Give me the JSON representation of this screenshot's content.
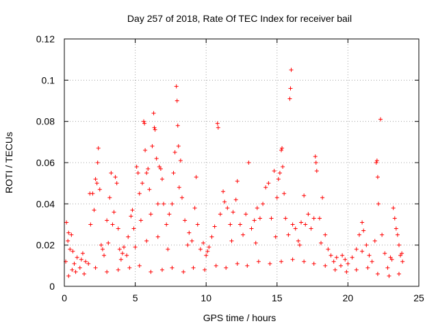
{
  "chart_data": {
    "type": "scatter",
    "title": "Day 257 of 2018, Rate Of TEC Index for receiver bail",
    "xlabel": "GPS time / hours",
    "ylabel": "ROTI / TECUs",
    "xlim": [
      0,
      25
    ],
    "ylim": [
      0,
      0.12
    ],
    "xticks": [
      0,
      5,
      10,
      15,
      20,
      25
    ],
    "yticks": [
      0,
      0.02,
      0.04,
      0.06,
      0.08,
      0.1,
      0.12
    ],
    "xtick_labels": [
      "0",
      "5",
      "10",
      "15",
      "20",
      "25"
    ],
    "ytick_labels": [
      "0",
      "0.02",
      "0.04",
      "0.06",
      "0.08",
      "0.1",
      "0.12"
    ],
    "grid": true,
    "marker": "+",
    "color": "#ff0000",
    "series": [
      {
        "name": "ROTI",
        "points": [
          [
            0.1,
            0.012
          ],
          [
            0.15,
            0.031
          ],
          [
            0.25,
            0.022
          ],
          [
            0.3,
            0.026
          ],
          [
            0.4,
            0.018
          ],
          [
            0.5,
            0.025
          ],
          [
            0.55,
            0.008
          ],
          [
            0.7,
            0.011
          ],
          [
            0.9,
            0.014
          ],
          [
            1.1,
            0.009
          ],
          [
            1.3,
            0.016
          ],
          [
            1.5,
            0.012
          ],
          [
            1.7,
            0.011
          ],
          [
            1.8,
            0.045
          ],
          [
            1.85,
            0.03
          ],
          [
            2.0,
            0.045
          ],
          [
            2.1,
            0.037
          ],
          [
            2.2,
            0.052
          ],
          [
            2.3,
            0.05
          ],
          [
            2.4,
            0.067
          ],
          [
            2.35,
            0.06
          ],
          [
            2.5,
            0.047
          ],
          [
            2.6,
            0.02
          ],
          [
            2.8,
            0.015
          ],
          [
            3.0,
            0.032
          ],
          [
            3.1,
            0.021
          ],
          [
            3.2,
            0.043
          ],
          [
            3.3,
            0.055
          ],
          [
            3.4,
            0.03
          ],
          [
            3.5,
            0.036
          ],
          [
            3.6,
            0.053
          ],
          [
            3.7,
            0.05
          ],
          [
            3.8,
            0.028
          ],
          [
            3.9,
            0.018
          ],
          [
            4.0,
            0.013
          ],
          [
            4.2,
            0.019
          ],
          [
            4.4,
            0.015
          ],
          [
            4.5,
            0.024
          ],
          [
            4.7,
            0.034
          ],
          [
            4.8,
            0.037
          ],
          [
            4.9,
            0.028
          ],
          [
            5.1,
            0.058
          ],
          [
            5.2,
            0.055
          ],
          [
            5.3,
            0.045
          ],
          [
            5.4,
            0.032
          ],
          [
            5.5,
            0.05
          ],
          [
            5.6,
            0.08
          ],
          [
            5.65,
            0.079
          ],
          [
            5.7,
            0.066
          ],
          [
            5.8,
            0.055
          ],
          [
            5.9,
            0.057
          ],
          [
            6.0,
            0.047
          ],
          [
            6.1,
            0.035
          ],
          [
            6.2,
            0.068
          ],
          [
            6.3,
            0.084
          ],
          [
            6.35,
            0.077
          ],
          [
            6.4,
            0.076
          ],
          [
            6.5,
            0.062
          ],
          [
            6.6,
            0.04
          ],
          [
            6.7,
            0.058
          ],
          [
            6.8,
            0.057
          ],
          [
            6.9,
            0.052
          ],
          [
            7.0,
            0.04
          ],
          [
            7.2,
            0.03
          ],
          [
            7.4,
            0.035
          ],
          [
            7.6,
            0.04
          ],
          [
            7.7,
            0.055
          ],
          [
            7.8,
            0.065
          ],
          [
            7.9,
            0.097
          ],
          [
            7.95,
            0.09
          ],
          [
            8.0,
            0.078
          ],
          [
            8.05,
            0.068
          ],
          [
            8.1,
            0.048
          ],
          [
            8.2,
            0.061
          ],
          [
            8.3,
            0.043
          ],
          [
            8.5,
            0.032
          ],
          [
            8.8,
            0.026
          ],
          [
            9.0,
            0.022
          ],
          [
            9.2,
            0.038
          ],
          [
            9.3,
            0.053
          ],
          [
            9.4,
            0.03
          ],
          [
            9.6,
            0.018
          ],
          [
            9.8,
            0.021
          ],
          [
            10.0,
            0.015
          ],
          [
            10.2,
            0.019
          ],
          [
            10.4,
            0.024
          ],
          [
            10.6,
            0.029
          ],
          [
            10.8,
            0.079
          ],
          [
            10.85,
            0.077
          ],
          [
            11.0,
            0.035
          ],
          [
            11.2,
            0.046
          ],
          [
            11.3,
            0.041
          ],
          [
            11.5,
            0.038
          ],
          [
            11.7,
            0.03
          ],
          [
            11.9,
            0.036
          ],
          [
            12.1,
            0.042
          ],
          [
            12.2,
            0.051
          ],
          [
            12.4,
            0.03
          ],
          [
            12.6,
            0.025
          ],
          [
            12.8,
            0.035
          ],
          [
            13.0,
            0.06
          ],
          [
            13.2,
            0.028
          ],
          [
            13.4,
            0.032
          ],
          [
            13.6,
            0.038
          ],
          [
            13.8,
            0.033
          ],
          [
            14.0,
            0.04
          ],
          [
            14.2,
            0.048
          ],
          [
            14.4,
            0.05
          ],
          [
            14.6,
            0.033
          ],
          [
            14.8,
            0.056
          ],
          [
            15.0,
            0.043
          ],
          [
            15.1,
            0.052
          ],
          [
            15.2,
            0.055
          ],
          [
            15.3,
            0.066
          ],
          [
            15.35,
            0.067
          ],
          [
            15.4,
            0.058
          ],
          [
            15.5,
            0.045
          ],
          [
            15.6,
            0.033
          ],
          [
            15.8,
            0.025
          ],
          [
            15.9,
            0.091
          ],
          [
            15.95,
            0.096
          ],
          [
            16.0,
            0.105
          ],
          [
            16.1,
            0.03
          ],
          [
            16.3,
            0.028
          ],
          [
            16.5,
            0.022
          ],
          [
            16.7,
            0.031
          ],
          [
            16.9,
            0.044
          ],
          [
            17.0,
            0.03
          ],
          [
            17.2,
            0.035
          ],
          [
            17.4,
            0.028
          ],
          [
            17.6,
            0.033
          ],
          [
            17.7,
            0.063
          ],
          [
            17.75,
            0.06
          ],
          [
            17.8,
            0.056
          ],
          [
            18.0,
            0.033
          ],
          [
            18.2,
            0.043
          ],
          [
            18.4,
            0.025
          ],
          [
            18.6,
            0.018
          ],
          [
            18.8,
            0.015
          ],
          [
            19.0,
            0.012
          ],
          [
            19.2,
            0.014
          ],
          [
            19.5,
            0.01
          ],
          [
            19.8,
            0.013
          ],
          [
            20.0,
            0.011
          ],
          [
            20.3,
            0.014
          ],
          [
            20.6,
            0.018
          ],
          [
            20.8,
            0.025
          ],
          [
            21.0,
            0.031
          ],
          [
            21.1,
            0.027
          ],
          [
            21.3,
            0.02
          ],
          [
            21.5,
            0.015
          ],
          [
            21.7,
            0.012
          ],
          [
            21.9,
            0.022
          ],
          [
            22.0,
            0.06
          ],
          [
            22.05,
            0.061
          ],
          [
            22.1,
            0.053
          ],
          [
            22.15,
            0.04
          ],
          [
            22.3,
            0.081
          ],
          [
            22.4,
            0.025
          ],
          [
            22.6,
            0.016
          ],
          [
            22.8,
            0.009
          ],
          [
            23.0,
            0.014
          ],
          [
            23.2,
            0.038
          ],
          [
            23.3,
            0.033
          ],
          [
            23.4,
            0.028
          ],
          [
            23.5,
            0.025
          ],
          [
            23.6,
            0.02
          ],
          [
            23.7,
            0.015
          ],
          [
            23.8,
            0.016
          ],
          [
            23.85,
            0.012
          ],
          [
            0.3,
            0.005
          ],
          [
            0.8,
            0.007
          ],
          [
            1.4,
            0.006
          ],
          [
            2.2,
            0.009
          ],
          [
            3.0,
            0.007
          ],
          [
            3.8,
            0.008
          ],
          [
            4.6,
            0.009
          ],
          [
            5.3,
            0.01
          ],
          [
            6.1,
            0.007
          ],
          [
            6.9,
            0.008
          ],
          [
            7.6,
            0.009
          ],
          [
            8.4,
            0.007
          ],
          [
            9.1,
            0.009
          ],
          [
            9.9,
            0.008
          ],
          [
            10.7,
            0.01
          ],
          [
            11.4,
            0.009
          ],
          [
            12.2,
            0.011
          ],
          [
            12.9,
            0.01
          ],
          [
            13.7,
            0.012
          ],
          [
            14.5,
            0.011
          ],
          [
            15.3,
            0.012
          ],
          [
            16.1,
            0.013
          ],
          [
            16.9,
            0.012
          ],
          [
            17.6,
            0.011
          ],
          [
            18.4,
            0.01
          ],
          [
            19.1,
            0.008
          ],
          [
            19.9,
            0.007
          ],
          [
            20.6,
            0.008
          ],
          [
            21.4,
            0.009
          ],
          [
            22.1,
            0.006
          ],
          [
            22.9,
            0.005
          ],
          [
            23.6,
            0.006
          ],
          [
            0.6,
            0.017
          ],
          [
            1.2,
            0.013
          ],
          [
            2.7,
            0.018
          ],
          [
            4.1,
            0.016
          ],
          [
            5.0,
            0.019
          ],
          [
            5.8,
            0.022
          ],
          [
            6.6,
            0.024
          ],
          [
            7.3,
            0.018
          ],
          [
            8.7,
            0.02
          ],
          [
            10.1,
            0.017
          ],
          [
            11.8,
            0.022
          ],
          [
            13.5,
            0.021
          ],
          [
            14.9,
            0.024
          ],
          [
            16.6,
            0.02
          ],
          [
            18.1,
            0.021
          ],
          [
            19.6,
            0.015
          ],
          [
            21.0,
            0.017
          ],
          [
            23.1,
            0.013
          ]
        ]
      }
    ]
  }
}
